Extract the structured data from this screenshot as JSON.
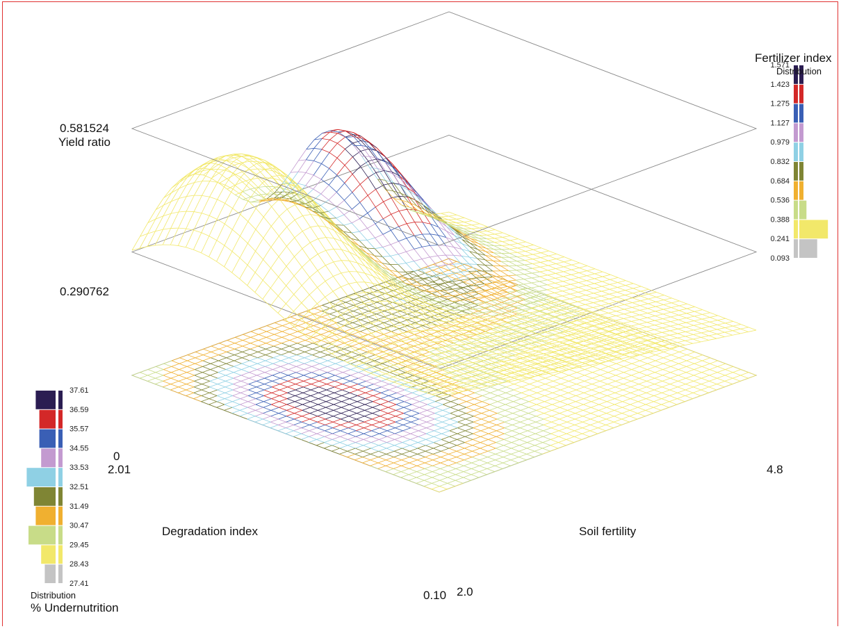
{
  "chart_data": {
    "type": "surface",
    "z_label": "Yield ratio",
    "z_ticks": [
      "0.581524",
      "0.290762"
    ],
    "x_label": "Degradation index",
    "x_range": [
      "0.10",
      "2.01"
    ],
    "y_label": "Soil fertility",
    "y_range": [
      "2.0",
      "4.8"
    ],
    "floor_value": "0",
    "surface_legend": {
      "title": "Fertilizer index",
      "subtitle": "Distribution",
      "ticks": [
        "1.571",
        "1.423",
        "1.275",
        "1.127",
        "0.979",
        "0.832",
        "0.684",
        "0.536",
        "0.388",
        "0.241",
        "0.093"
      ],
      "colors": [
        "#2b1d52",
        "#d32828",
        "#3a5fb5",
        "#c39ad0",
        "#8fd0e4",
        "#7f8534",
        "#f0b030",
        "#c8dc88",
        "#f2e86a",
        "#c4c4c4"
      ],
      "distribution": [
        0.12,
        0.12,
        0.12,
        0.12,
        0.12,
        0.12,
        0.12,
        0.22,
        0.88,
        0.55
      ]
    },
    "floor_legend": {
      "title": "% Undernutrition",
      "subtitle": "Distribution",
      "ticks": [
        "37.61",
        "36.59",
        "35.57",
        "34.55",
        "33.53",
        "32.51",
        "31.49",
        "30.47",
        "29.45",
        "28.43",
        "27.41"
      ],
      "colors": [
        "#2b1d52",
        "#d32828",
        "#3a5fb5",
        "#c39ad0",
        "#8fd0e4",
        "#7f8534",
        "#f0b030",
        "#c8dc88",
        "#f2e86a",
        "#c4c4c4"
      ],
      "distribution": [
        0.55,
        0.45,
        0.45,
        0.4,
        0.8,
        0.6,
        0.55,
        0.75,
        0.4,
        0.3
      ]
    }
  }
}
